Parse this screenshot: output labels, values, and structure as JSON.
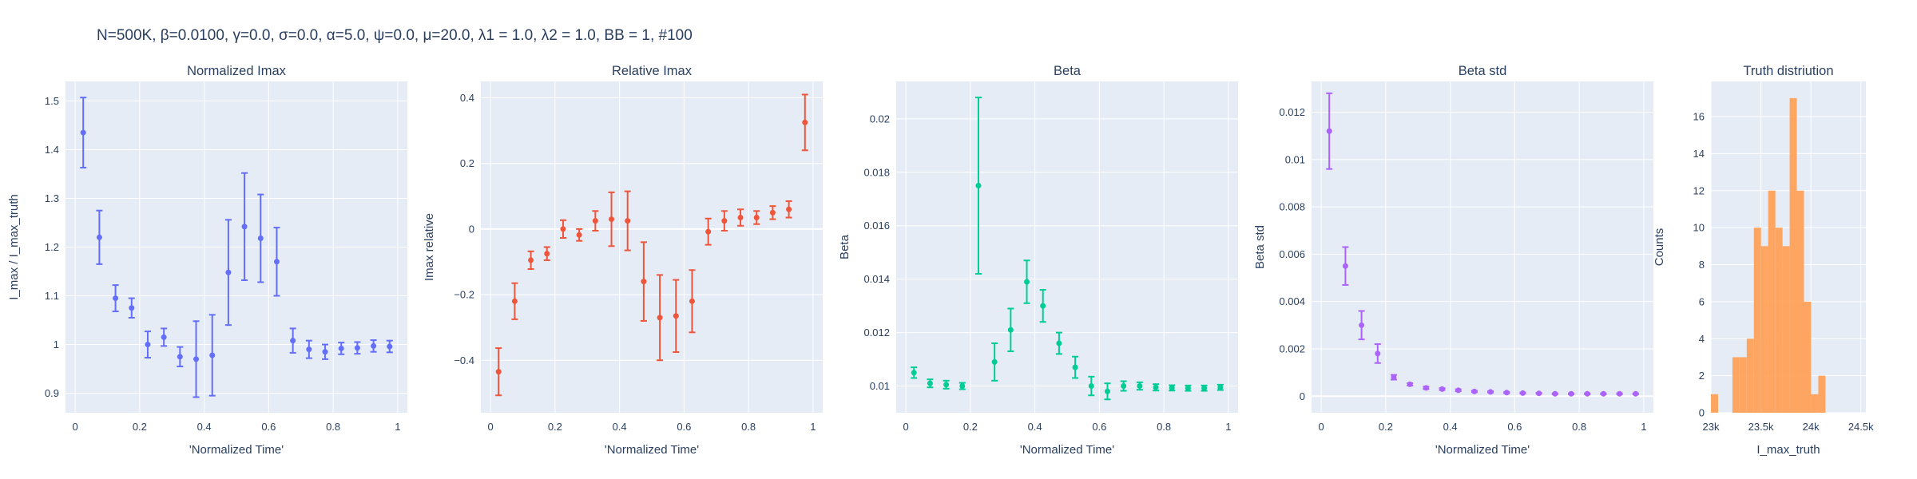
{
  "figure": {
    "title": "N=500K, β=0.0100, γ=0.0, σ=0.0,  α=5.0, ψ=0.0, μ=20.0, λ1 = 1.0, λ2 = 1.0, BB = 1, #100"
  },
  "chart_data": [
    {
      "type": "scatter",
      "title": "Normalized Imax",
      "xlabel": "'Normalized Time'",
      "ylabel": "I_max / I_max_truth",
      "color": "#636efa",
      "xlim": [
        -0.03,
        1.03
      ],
      "ylim": [
        0.86,
        1.54
      ],
      "xticks": [
        0,
        0.2,
        0.4,
        0.6,
        0.8,
        1
      ],
      "xtick_labels": [
        "0",
        "0.2",
        "0.4",
        "0.6",
        "0.8",
        "1"
      ],
      "yticks": [
        0.9,
        1.0,
        1.1,
        1.2,
        1.3,
        1.4,
        1.5
      ],
      "ytick_labels": [
        "0.9",
        "1",
        "1.1",
        "1.2",
        "1.3",
        "1.4",
        "1.5"
      ],
      "x": [
        0.025,
        0.075,
        0.125,
        0.175,
        0.225,
        0.275,
        0.325,
        0.375,
        0.425,
        0.475,
        0.525,
        0.575,
        0.625,
        0.675,
        0.725,
        0.775,
        0.825,
        0.875,
        0.925,
        0.975
      ],
      "y": [
        1.435,
        1.22,
        1.095,
        1.075,
        1.0,
        1.015,
        0.975,
        0.97,
        0.978,
        1.148,
        1.242,
        1.218,
        1.17,
        1.008,
        0.99,
        0.985,
        0.992,
        0.993,
        0.997,
        0.996
      ],
      "err": [
        0.072,
        0.055,
        0.027,
        0.02,
        0.027,
        0.018,
        0.02,
        0.078,
        0.083,
        0.108,
        0.11,
        0.09,
        0.07,
        0.025,
        0.018,
        0.015,
        0.012,
        0.012,
        0.012,
        0.012
      ]
    },
    {
      "type": "scatter",
      "title": "Relative Imax",
      "xlabel": "'Normalized Time'",
      "ylabel": "Imax relative",
      "color": "#ef553b",
      "xlim": [
        -0.03,
        1.03
      ],
      "ylim": [
        -0.56,
        0.45
      ],
      "xticks": [
        0,
        0.2,
        0.4,
        0.6,
        0.8,
        1
      ],
      "xtick_labels": [
        "0",
        "0.2",
        "0.4",
        "0.6",
        "0.8",
        "1"
      ],
      "yticks": [
        -0.4,
        -0.2,
        0,
        0.2,
        0.4
      ],
      "ytick_labels": [
        "−0.4",
        "−0.2",
        "0",
        "0.2",
        "0.4"
      ],
      "x": [
        0.025,
        0.075,
        0.125,
        0.175,
        0.225,
        0.275,
        0.325,
        0.375,
        0.425,
        0.475,
        0.525,
        0.575,
        0.625,
        0.675,
        0.725,
        0.775,
        0.825,
        0.875,
        0.925,
        0.975
      ],
      "y": [
        -0.435,
        -0.22,
        -0.095,
        -0.075,
        0.0,
        -0.018,
        0.025,
        0.03,
        0.025,
        -0.16,
        -0.27,
        -0.265,
        -0.22,
        -0.008,
        0.025,
        0.035,
        0.035,
        0.05,
        0.06,
        0.325
      ],
      "err": [
        0.072,
        0.055,
        0.027,
        0.02,
        0.027,
        0.018,
        0.03,
        0.082,
        0.09,
        0.12,
        0.13,
        0.11,
        0.095,
        0.04,
        0.03,
        0.025,
        0.02,
        0.02,
        0.025,
        0.085
      ]
    },
    {
      "type": "scatter",
      "title": "Beta",
      "xlabel": "'Normalized Time'",
      "ylabel": "Beta",
      "color": "#00cc96",
      "xlim": [
        -0.03,
        1.03
      ],
      "ylim": [
        0.009,
        0.0214
      ],
      "xticks": [
        0,
        0.2,
        0.4,
        0.6,
        0.8,
        1
      ],
      "xtick_labels": [
        "0",
        "0.2",
        "0.4",
        "0.6",
        "0.8",
        "1"
      ],
      "yticks": [
        0.01,
        0.012,
        0.014,
        0.016,
        0.018,
        0.02
      ],
      "ytick_labels": [
        "0.01",
        "0.012",
        "0.014",
        "0.016",
        "0.018",
        "0.02"
      ],
      "x": [
        0.025,
        0.075,
        0.125,
        0.175,
        0.225,
        0.275,
        0.325,
        0.375,
        0.425,
        0.475,
        0.525,
        0.575,
        0.625,
        0.675,
        0.725,
        0.775,
        0.825,
        0.875,
        0.925,
        0.975
      ],
      "y": [
        0.0105,
        0.0101,
        0.01005,
        0.01,
        0.0175,
        0.0109,
        0.0121,
        0.0139,
        0.013,
        0.0116,
        0.0107,
        0.01,
        0.0098,
        0.01,
        0.01,
        0.00995,
        0.00993,
        0.00992,
        0.00992,
        0.00995
      ],
      "err": [
        0.0002,
        0.00015,
        0.00015,
        0.00012,
        0.0033,
        0.0007,
        0.0008,
        0.0008,
        0.0006,
        0.0004,
        0.0004,
        0.00035,
        0.0003,
        0.00018,
        0.00014,
        0.00012,
        0.0001,
        0.0001,
        0.0001,
        0.0001
      ]
    },
    {
      "type": "scatter",
      "title": "Beta std",
      "xlabel": "'Normalized Time'",
      "ylabel": "Beta std",
      "color": "#ab63fa",
      "xlim": [
        -0.03,
        1.03
      ],
      "ylim": [
        -0.0007,
        0.0133
      ],
      "xticks": [
        0,
        0.2,
        0.4,
        0.6,
        0.8,
        1
      ],
      "xtick_labels": [
        "0",
        "0.2",
        "0.4",
        "0.6",
        "0.8",
        "1"
      ],
      "yticks": [
        0,
        0.002,
        0.004,
        0.006,
        0.008,
        0.01,
        0.012
      ],
      "ytick_labels": [
        "0",
        "0.002",
        "0.004",
        "0.006",
        "0.008",
        "0.01",
        "0.012"
      ],
      "x": [
        0.025,
        0.075,
        0.125,
        0.175,
        0.225,
        0.275,
        0.325,
        0.375,
        0.425,
        0.475,
        0.525,
        0.575,
        0.625,
        0.675,
        0.725,
        0.775,
        0.825,
        0.875,
        0.925,
        0.975
      ],
      "y": [
        0.0112,
        0.0055,
        0.003,
        0.0018,
        0.0008,
        0.0005,
        0.00035,
        0.0003,
        0.00025,
        0.0002,
        0.00018,
        0.00015,
        0.00013,
        0.00012,
        0.0001,
        0.0001,
        0.0001,
        0.0001,
        0.0001,
        0.0001
      ],
      "err": [
        0.0016,
        0.0008,
        0.0006,
        0.0004,
        0.0001,
        5e-05,
        5e-05,
        4e-05,
        4e-05,
        3e-05,
        3e-05,
        3e-05,
        2e-05,
        2e-05,
        2e-05,
        2e-05,
        2e-05,
        2e-05,
        2e-05,
        2e-05
      ]
    },
    {
      "type": "histogram",
      "title": "Truth distriution",
      "xlabel": "I_max_truth",
      "ylabel": "Counts",
      "color": "#ffa15a",
      "xlim": [
        23000,
        24550
      ],
      "ylim": [
        0,
        17.9
      ],
      "xticks": [
        23000,
        23500,
        24000,
        24500
      ],
      "xtick_labels": [
        "23k",
        "23.5k",
        "24k",
        "24.5k"
      ],
      "yticks": [
        0,
        2,
        4,
        6,
        8,
        10,
        12,
        14,
        16
      ],
      "ytick_labels": [
        "0",
        "2",
        "4",
        "6",
        "8",
        "10",
        "12",
        "14",
        "16"
      ],
      "bin_start": 23000,
      "bin_width": 71.6,
      "counts": [
        1,
        0,
        0,
        3,
        3,
        4,
        10,
        9,
        12,
        10,
        9,
        17,
        12,
        6,
        1,
        2
      ]
    }
  ]
}
